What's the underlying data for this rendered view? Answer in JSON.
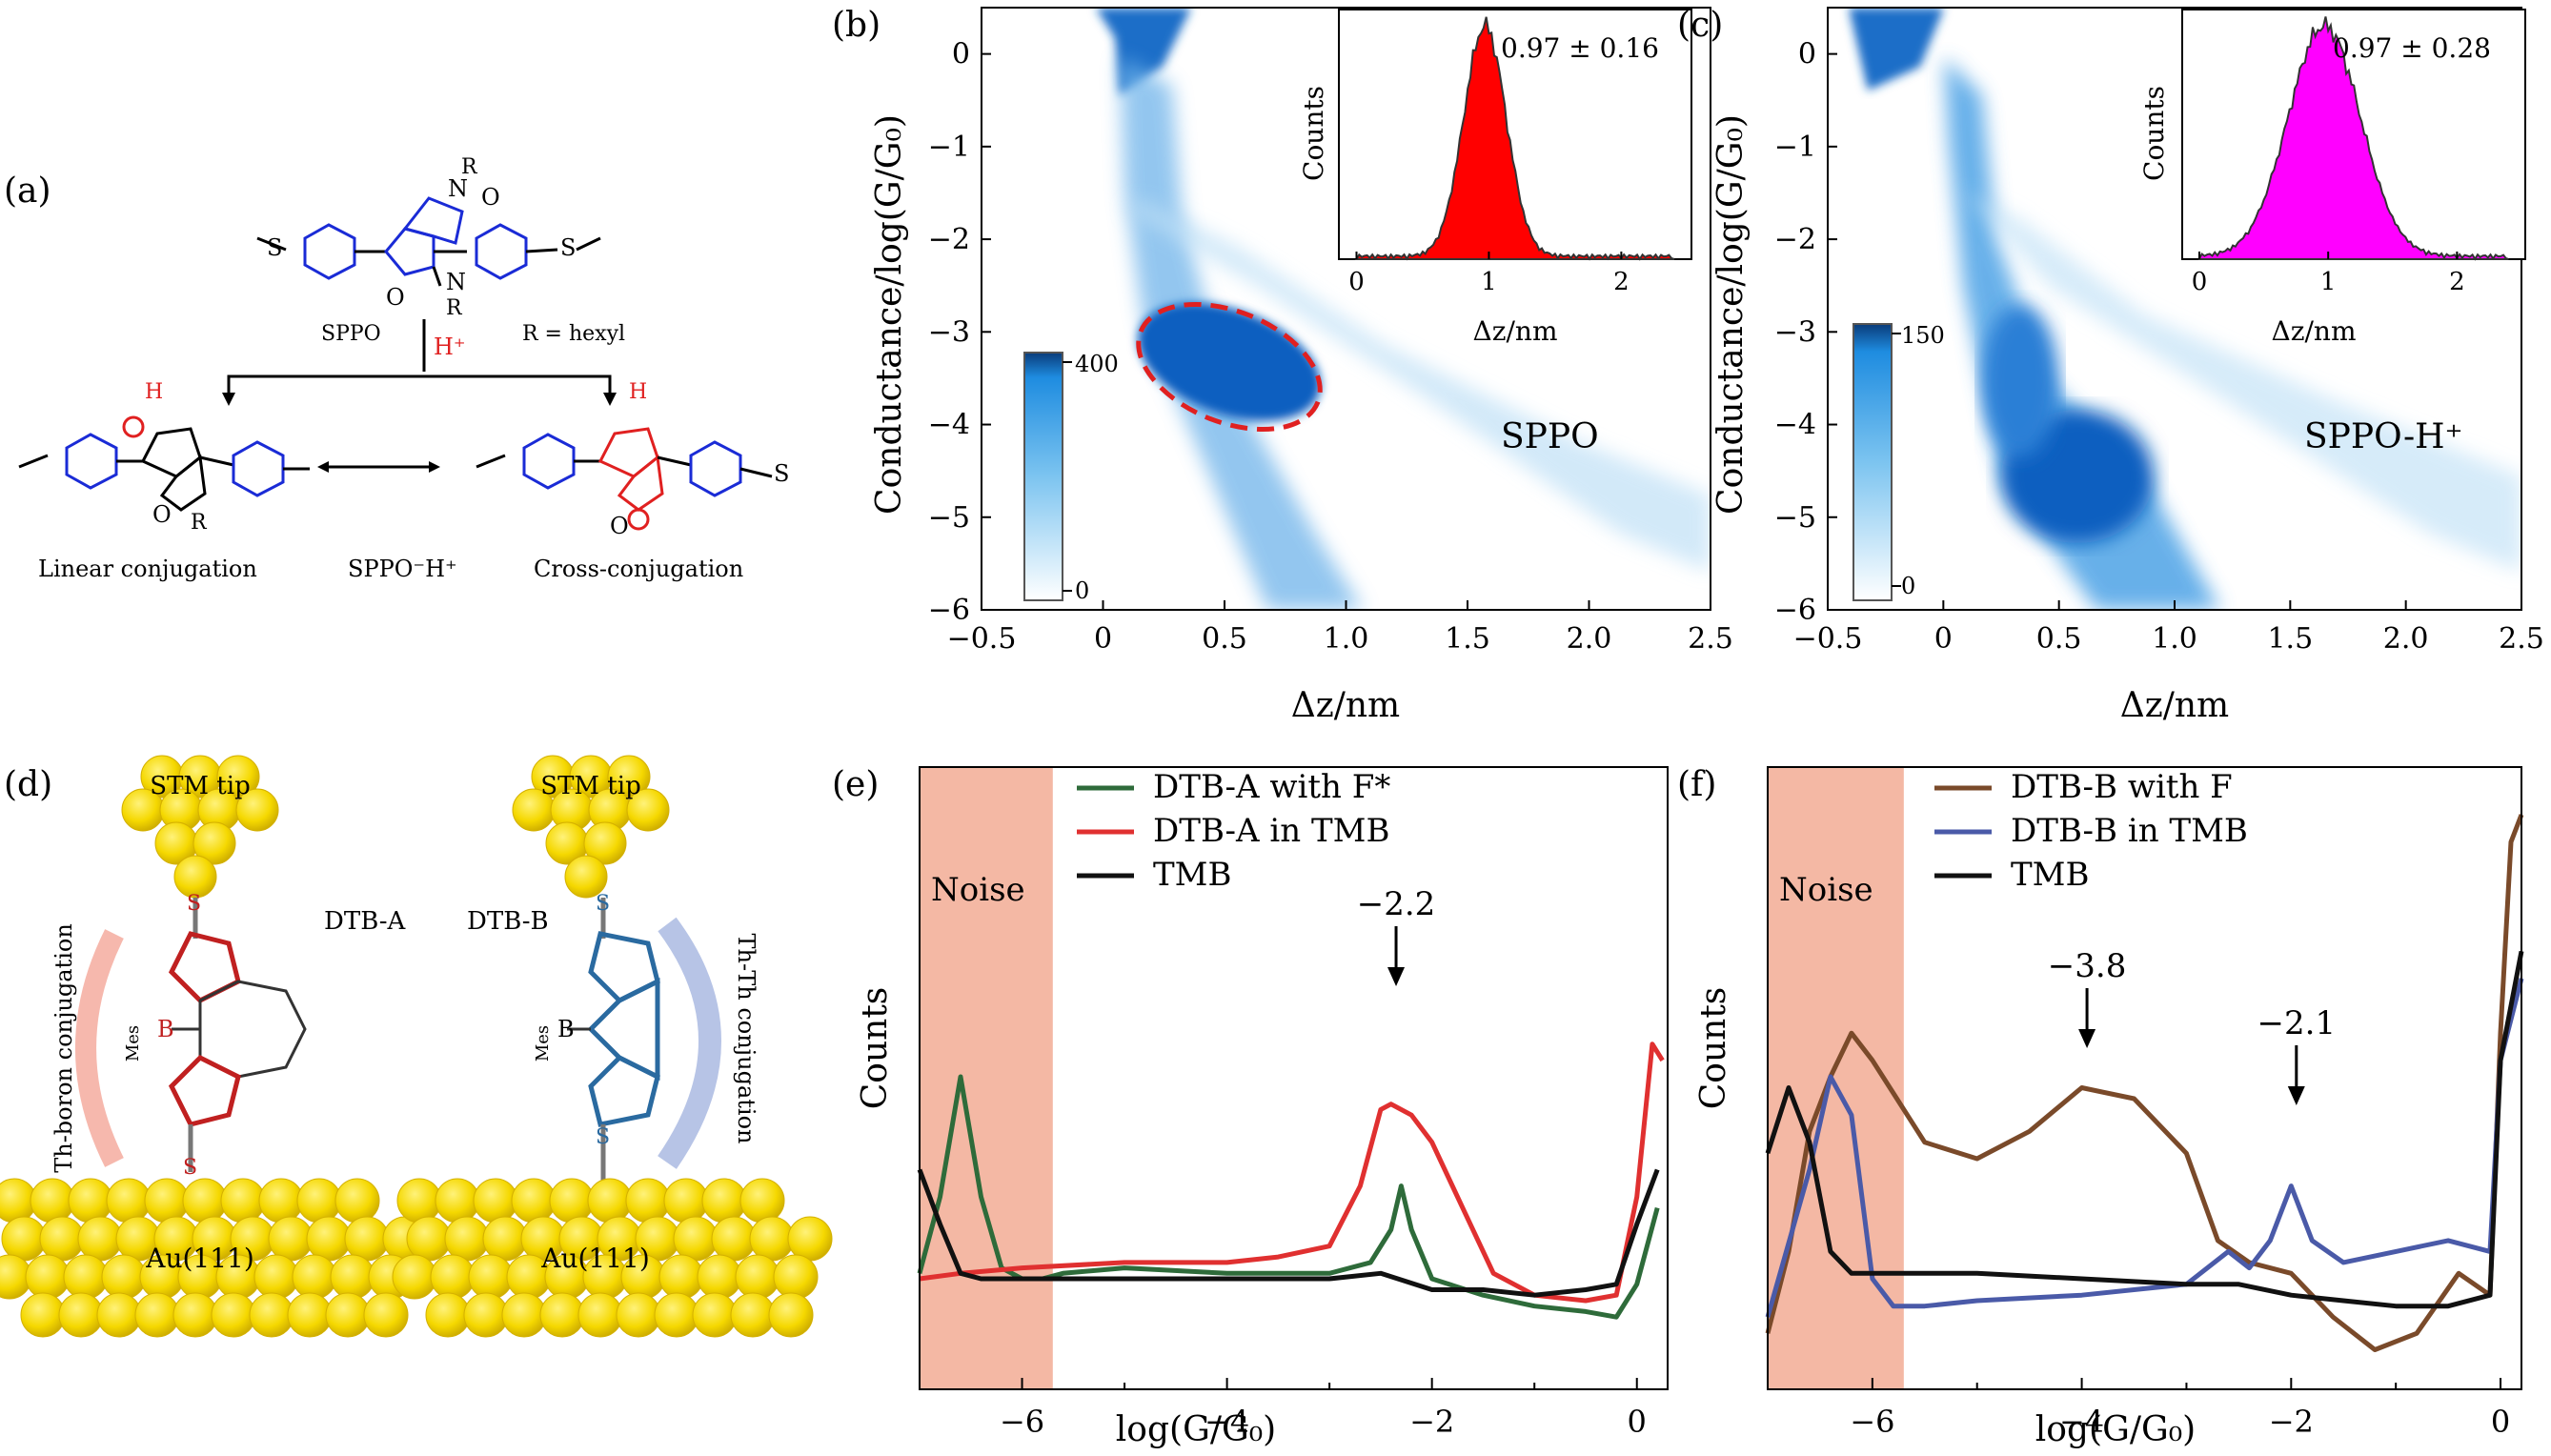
{
  "panel_a": {
    "label": "(a)",
    "sppo": "SPPO",
    "r_def": "R = hexyl",
    "hplus": "H⁺",
    "linear": "Linear conjugation",
    "sppoh": "SPPO⁻H⁺",
    "cross": "Cross-conjugation",
    "R": "R",
    "O": "O",
    "N": "N",
    "H": "H",
    "S": "S"
  },
  "panel_b": {
    "label": "(b)",
    "xlabel": "Δz/nm",
    "ylabel": "Conductance/log(G/G₀)",
    "xticks": [
      "−0.5",
      "0",
      "0.5",
      "1.0",
      "1.5",
      "2.0",
      "2.5"
    ],
    "yticks": [
      "0",
      "−1",
      "−2",
      "−3",
      "−4",
      "−5",
      "−6"
    ],
    "name": "SPPO",
    "cbar_max": "400",
    "cbar_min": "0",
    "inset": {
      "ylabel": "Counts",
      "xlabel": "Δz/nm",
      "xticks": [
        "0",
        "1",
        "2"
      ],
      "value": "0.97 ± 0.16",
      "color": "#ff0000"
    }
  },
  "panel_c": {
    "label": "(c)",
    "xlabel": "Δz/nm",
    "ylabel": "Conductance/log(G/G₀)",
    "xticks": [
      "−0.5",
      "0",
      "0.5",
      "1.0",
      "1.5",
      "2.0",
      "2.5"
    ],
    "yticks": [
      "0",
      "−1",
      "−2",
      "−3",
      "−4",
      "−5",
      "−6"
    ],
    "name": "SPPO-H⁺",
    "cbar_max": "150",
    "cbar_min": "0",
    "inset": {
      "ylabel": "Counts",
      "xlabel": "Δz/nm",
      "xticks": [
        "0",
        "1",
        "2"
      ],
      "value": "0.97 ± 0.28",
      "color": "#ff00ff"
    }
  },
  "panel_d": {
    "label": "(d)",
    "stm": "STM tip",
    "au": "Au(111)",
    "dtba": "DTB-A",
    "dtbb": "DTB-B",
    "th_boron": "Th-boron conjugation",
    "th_th": "Th-Th conjugation",
    "mes": "Mes",
    "B": "B",
    "S": "S"
  },
  "chart_data": [
    {
      "type": "line",
      "panel": "(e)",
      "xlabel": "log(G/G₀)",
      "ylabel": "Counts",
      "xlim": [
        -7,
        0.3
      ],
      "xticks": [
        "−6",
        "−4",
        "−2",
        "0"
      ],
      "noise_label": "Noise",
      "noise_range": [
        -7,
        -5.7
      ],
      "annotation": {
        "text": "−2.2",
        "x": -2.35
      },
      "series": [
        {
          "name": "DTB-A with F*",
          "color": "#2e6b3a",
          "x": [
            -7.0,
            -6.8,
            -6.6,
            -6.4,
            -6.2,
            -6.0,
            -5.8,
            -5.6,
            -5.0,
            -4.0,
            -3.0,
            -2.6,
            -2.4,
            -2.3,
            -2.2,
            -2.0,
            -1.5,
            -1.0,
            -0.5,
            -0.2,
            0.0,
            0.2
          ],
          "y": [
            0.16,
            0.3,
            0.52,
            0.3,
            0.17,
            0.15,
            0.15,
            0.16,
            0.17,
            0.16,
            0.16,
            0.18,
            0.24,
            0.32,
            0.24,
            0.15,
            0.12,
            0.1,
            0.09,
            0.08,
            0.14,
            0.28
          ]
        },
        {
          "name": "DTB-A in TMB",
          "color": "#e03030",
          "x": [
            -7.0,
            -6.6,
            -6.0,
            -5.0,
            -4.0,
            -3.5,
            -3.0,
            -2.7,
            -2.5,
            -2.4,
            -2.2,
            -2.0,
            -1.7,
            -1.4,
            -1.0,
            -0.5,
            -0.2,
            0.0,
            0.15,
            0.25
          ],
          "y": [
            0.15,
            0.16,
            0.17,
            0.18,
            0.18,
            0.19,
            0.21,
            0.32,
            0.46,
            0.47,
            0.45,
            0.4,
            0.28,
            0.16,
            0.12,
            0.11,
            0.12,
            0.3,
            0.58,
            0.55
          ]
        },
        {
          "name": "TMB",
          "color": "#111111",
          "x": [
            -7.0,
            -6.8,
            -6.6,
            -6.4,
            -6.0,
            -5.0,
            -4.0,
            -3.0,
            -2.5,
            -2.0,
            -1.5,
            -1.0,
            -0.5,
            -0.2,
            0.0,
            0.2
          ],
          "y": [
            0.35,
            0.25,
            0.16,
            0.15,
            0.15,
            0.15,
            0.15,
            0.15,
            0.16,
            0.13,
            0.13,
            0.12,
            0.13,
            0.14,
            0.25,
            0.35
          ]
        }
      ]
    },
    {
      "type": "line",
      "panel": "(f)",
      "xlabel": "log(G/G₀)",
      "ylabel": "Counts",
      "xlim": [
        -7,
        0.2
      ],
      "xticks": [
        "−6",
        "−4",
        "−2",
        "0"
      ],
      "noise_label": "Noise",
      "noise_range": [
        -7,
        -5.7
      ],
      "annotations": [
        {
          "text": "−3.8",
          "x": -3.95
        },
        {
          "text": "−2.1",
          "x": -1.95
        }
      ],
      "series": [
        {
          "name": "DTB-B with F",
          "color": "#7a4a2a",
          "x": [
            -7.0,
            -6.8,
            -6.6,
            -6.4,
            -6.2,
            -6.0,
            -5.5,
            -5.0,
            -4.5,
            -4.0,
            -3.5,
            -3.0,
            -2.7,
            -2.4,
            -2.0,
            -1.6,
            -1.2,
            -0.8,
            -0.4,
            -0.1,
            0.0,
            0.1,
            0.2
          ],
          "y": [
            0.05,
            0.2,
            0.42,
            0.52,
            0.6,
            0.55,
            0.4,
            0.37,
            0.42,
            0.5,
            0.48,
            0.38,
            0.22,
            0.18,
            0.16,
            0.08,
            0.02,
            0.05,
            0.16,
            0.12,
            0.6,
            0.95,
            1.0
          ]
        },
        {
          "name": "DTB-B in TMB",
          "color": "#4a5aa8",
          "x": [
            -7.0,
            -6.6,
            -6.4,
            -6.2,
            -6.0,
            -5.8,
            -5.5,
            -5.0,
            -4.0,
            -3.0,
            -2.6,
            -2.4,
            -2.2,
            -2.0,
            -1.8,
            -1.5,
            -1.0,
            -0.5,
            -0.1,
            0.0,
            0.2
          ],
          "y": [
            0.08,
            0.35,
            0.52,
            0.45,
            0.15,
            0.1,
            0.1,
            0.11,
            0.12,
            0.14,
            0.2,
            0.17,
            0.22,
            0.32,
            0.22,
            0.18,
            0.2,
            0.22,
            0.2,
            0.55,
            0.7
          ]
        },
        {
          "name": "TMB",
          "color": "#111111",
          "x": [
            -7.0,
            -6.8,
            -6.6,
            -6.4,
            -6.2,
            -6.0,
            -5.0,
            -4.0,
            -3.0,
            -2.5,
            -2.0,
            -1.5,
            -1.0,
            -0.5,
            -0.1,
            0.0,
            0.2
          ],
          "y": [
            0.38,
            0.5,
            0.4,
            0.2,
            0.16,
            0.16,
            0.16,
            0.15,
            0.14,
            0.14,
            0.12,
            0.11,
            0.1,
            0.1,
            0.12,
            0.55,
            0.75
          ]
        }
      ]
    }
  ]
}
